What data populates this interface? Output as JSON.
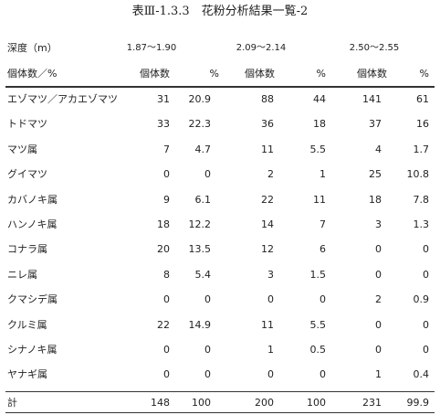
{
  "title": "表Ⅲ-1.3.3　花粉分析結果一覧-2",
  "table": {
    "depth_label": "深度（m）",
    "depths": [
      "1.87〜1.90",
      "2.09〜2.14",
      "2.50〜2.55"
    ],
    "header": [
      "個体数／%",
      "個体数",
      "%",
      "個体数",
      "%",
      "個体数",
      "%"
    ],
    "rows": [
      [
        "エゾマツ／アカエゾマツ",
        31,
        20.9,
        88,
        44,
        141,
        61
      ],
      [
        "トドマツ",
        33,
        22.3,
        36,
        18,
        37,
        16
      ],
      [
        "マツ属",
        7,
        4.7,
        11,
        5.5,
        4,
        1.7
      ],
      [
        "グイマツ",
        0,
        0,
        2,
        1,
        25,
        10.8
      ],
      [
        "カバノキ属",
        9,
        6.1,
        22,
        11,
        18,
        7.8
      ],
      [
        "ハンノキ属",
        18,
        12.2,
        14,
        7,
        3,
        1.3
      ],
      [
        "コナラ属",
        20,
        13.5,
        12,
        6,
        0,
        0
      ],
      [
        "ニレ属",
        8,
        5.4,
        3,
        1.5,
        0,
        0
      ],
      [
        "クマシデ属",
        0,
        0,
        0,
        0,
        2,
        0.9
      ],
      [
        "クルミ属",
        22,
        14.9,
        11,
        5.5,
        0,
        0
      ],
      [
        "シナノキ属",
        0,
        0,
        1,
        0.5,
        0,
        0
      ],
      [
        "ヤナギ属",
        0,
        0,
        0,
        0,
        1,
        0.4
      ]
    ],
    "total": [
      "計",
      148,
      100,
      200,
      100,
      231,
      99.9
    ]
  }
}
